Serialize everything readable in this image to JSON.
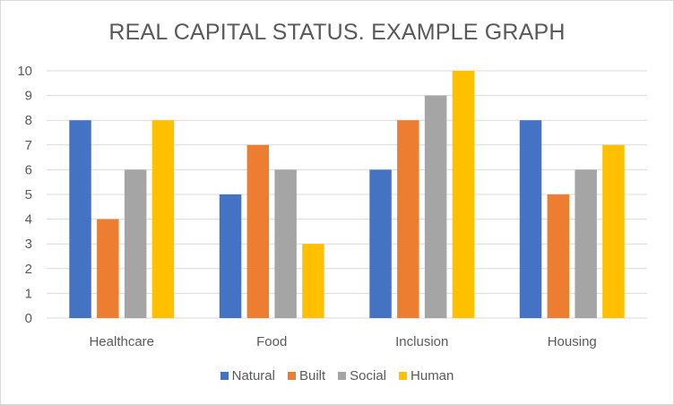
{
  "chart_data": {
    "type": "bar",
    "title": "REAL CAPITAL STATUS. EXAMPLE GRAPH",
    "xlabel": "",
    "ylabel": "",
    "ylim": [
      0,
      10
    ],
    "yticks": [
      "0",
      "1",
      "2",
      "3",
      "4",
      "5",
      "6",
      "7",
      "8",
      "9",
      "10"
    ],
    "grid": true,
    "legend_position": "bottom",
    "categories": [
      "Healthcare",
      "Food",
      "Inclusion",
      "Housing"
    ],
    "series": [
      {
        "name": "Natural",
        "color": "#4472c4",
        "values": [
          8,
          5,
          6,
          8
        ]
      },
      {
        "name": "Built",
        "color": "#ed7d31",
        "values": [
          4,
          7,
          8,
          5
        ]
      },
      {
        "name": "Social",
        "color": "#a5a5a5",
        "values": [
          6,
          6,
          9,
          6
        ]
      },
      {
        "name": "Human",
        "color": "#ffc000",
        "values": [
          8,
          3,
          10,
          7
        ]
      }
    ]
  }
}
